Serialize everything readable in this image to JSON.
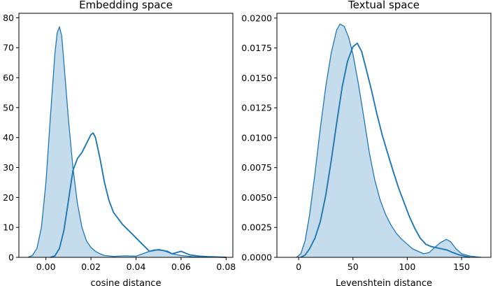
{
  "colors": {
    "series": "#1f77b4",
    "fill": "#1f77b4",
    "fill_opacity": 0.26,
    "axis": "#000000"
  },
  "chart_data": [
    {
      "type": "area",
      "title": "Embedding space",
      "xlabel": "cosine distance",
      "ylabel": "",
      "xlim": [
        -0.012,
        0.083
      ],
      "ylim": [
        0,
        81.5
      ],
      "grid": false,
      "legend": "none",
      "xticks": [
        0.0,
        0.02,
        0.04,
        0.06,
        0.08
      ],
      "xtick_labels": [
        "0.00",
        "0.02",
        "0.04",
        "0.06",
        "0.08"
      ],
      "yticks": [
        0,
        10,
        20,
        30,
        40,
        50,
        60,
        70,
        80
      ],
      "ytick_labels": [
        "0",
        "10",
        "20",
        "30",
        "40",
        "50",
        "60",
        "70",
        "80"
      ],
      "series": [
        {
          "style": "filled",
          "points": [
            [
              -0.008,
              0
            ],
            [
              -0.006,
              0.6
            ],
            [
              -0.004,
              3
            ],
            [
              -0.002,
              10
            ],
            [
              0.0,
              25
            ],
            [
              0.002,
              47
            ],
            [
              0.004,
              68
            ],
            [
              0.005,
              75
            ],
            [
              0.006,
              77
            ],
            [
              0.007,
              74
            ],
            [
              0.008,
              65
            ],
            [
              0.01,
              46
            ],
            [
              0.012,
              30
            ],
            [
              0.014,
              18
            ],
            [
              0.016,
              10
            ],
            [
              0.018,
              5.5
            ],
            [
              0.02,
              3.3
            ],
            [
              0.022,
              2
            ],
            [
              0.024,
              1.2
            ],
            [
              0.026,
              0.6
            ],
            [
              0.03,
              0.3
            ],
            [
              0.035,
              0.5
            ],
            [
              0.04,
              0.4
            ],
            [
              0.044,
              1.5
            ],
            [
              0.048,
              2.5
            ],
            [
              0.052,
              2.3
            ],
            [
              0.056,
              1.2
            ],
            [
              0.06,
              0.6
            ],
            [
              0.065,
              0.2
            ],
            [
              0.07,
              0
            ]
          ]
        },
        {
          "style": "line",
          "points": [
            [
              0.002,
              0
            ],
            [
              0.004,
              0.5
            ],
            [
              0.006,
              3
            ],
            [
              0.008,
              9
            ],
            [
              0.01,
              19
            ],
            [
              0.012,
              29
            ],
            [
              0.014,
              33
            ],
            [
              0.016,
              35
            ],
            [
              0.018,
              38
            ],
            [
              0.02,
              41
            ],
            [
              0.021,
              41.5
            ],
            [
              0.022,
              40
            ],
            [
              0.024,
              33
            ],
            [
              0.026,
              25
            ],
            [
              0.028,
              19
            ],
            [
              0.03,
              15
            ],
            [
              0.034,
              11
            ],
            [
              0.038,
              8
            ],
            [
              0.042,
              5
            ],
            [
              0.046,
              2
            ],
            [
              0.05,
              2.6
            ],
            [
              0.054,
              2
            ],
            [
              0.056,
              1.2
            ],
            [
              0.06,
              2
            ],
            [
              0.064,
              0.8
            ],
            [
              0.068,
              0.4
            ],
            [
              0.072,
              0.2
            ],
            [
              0.08,
              0
            ]
          ]
        }
      ]
    },
    {
      "type": "area",
      "title": "Textual space",
      "xlabel": "Levenshtein distance",
      "ylabel": "",
      "xlim": [
        -20,
        177
      ],
      "ylim": [
        0,
        0.0204
      ],
      "grid": false,
      "legend": "none",
      "xticks": [
        0,
        50,
        100,
        150
      ],
      "xtick_labels": [
        "0",
        "50",
        "100",
        "150"
      ],
      "yticks": [
        0,
        0.0025,
        0.005,
        0.0075,
        0.01,
        0.0125,
        0.015,
        0.0175,
        0.02
      ],
      "ytick_labels": [
        "0.0000",
        "0.0025",
        "0.0050",
        "0.0075",
        "0.0100",
        "0.0125",
        "0.0150",
        "0.0175",
        "0.0200"
      ],
      "series": [
        {
          "style": "filled",
          "points": [
            [
              -2,
              0
            ],
            [
              2,
              0.0003
            ],
            [
              6,
              0.0014
            ],
            [
              10,
              0.0035
            ],
            [
              15,
              0.007
            ],
            [
              20,
              0.0108
            ],
            [
              25,
              0.0143
            ],
            [
              30,
              0.0171
            ],
            [
              35,
              0.019
            ],
            [
              38,
              0.0195
            ],
            [
              42,
              0.0193
            ],
            [
              46,
              0.0184
            ],
            [
              50,
              0.017
            ],
            [
              55,
              0.0145
            ],
            [
              60,
              0.0117
            ],
            [
              65,
              0.0088
            ],
            [
              70,
              0.0065
            ],
            [
              75,
              0.0048
            ],
            [
              80,
              0.0036
            ],
            [
              85,
              0.0027
            ],
            [
              90,
              0.002
            ],
            [
              95,
              0.0015
            ],
            [
              100,
              0.0011
            ],
            [
              105,
              0.0007
            ],
            [
              110,
              0.0005
            ],
            [
              115,
              0.0003
            ],
            [
              120,
              0.0004
            ],
            [
              125,
              0.0008
            ],
            [
              130,
              0.0012
            ],
            [
              136,
              0.0015
            ],
            [
              140,
              0.0013
            ],
            [
              145,
              0.0007
            ],
            [
              150,
              0.0003
            ],
            [
              158,
              0.0001
            ],
            [
              168,
              0
            ]
          ]
        },
        {
          "style": "line",
          "points": [
            [
              2,
              0
            ],
            [
              6,
              0.0002
            ],
            [
              10,
              0.0007
            ],
            [
              15,
              0.0016
            ],
            [
              20,
              0.003
            ],
            [
              25,
              0.0052
            ],
            [
              30,
              0.0081
            ],
            [
              35,
              0.0112
            ],
            [
              40,
              0.0142
            ],
            [
              45,
              0.0164
            ],
            [
              50,
              0.0176
            ],
            [
              54,
              0.0179
            ],
            [
              58,
              0.0172
            ],
            [
              62,
              0.0158
            ],
            [
              67,
              0.014
            ],
            [
              72,
              0.012
            ],
            [
              77,
              0.0102
            ],
            [
              82,
              0.0087
            ],
            [
              87,
              0.0072
            ],
            [
              92,
              0.0058
            ],
            [
              97,
              0.0046
            ],
            [
              102,
              0.0034
            ],
            [
              107,
              0.0024
            ],
            [
              112,
              0.0016
            ],
            [
              117,
              0.0011
            ],
            [
              122,
              0.0009
            ],
            [
              127,
              0.0008
            ],
            [
              132,
              0.0007
            ],
            [
              137,
              0.0006
            ],
            [
              142,
              0.0004
            ],
            [
              148,
              0.0002
            ],
            [
              158,
              0
            ]
          ]
        }
      ]
    }
  ]
}
